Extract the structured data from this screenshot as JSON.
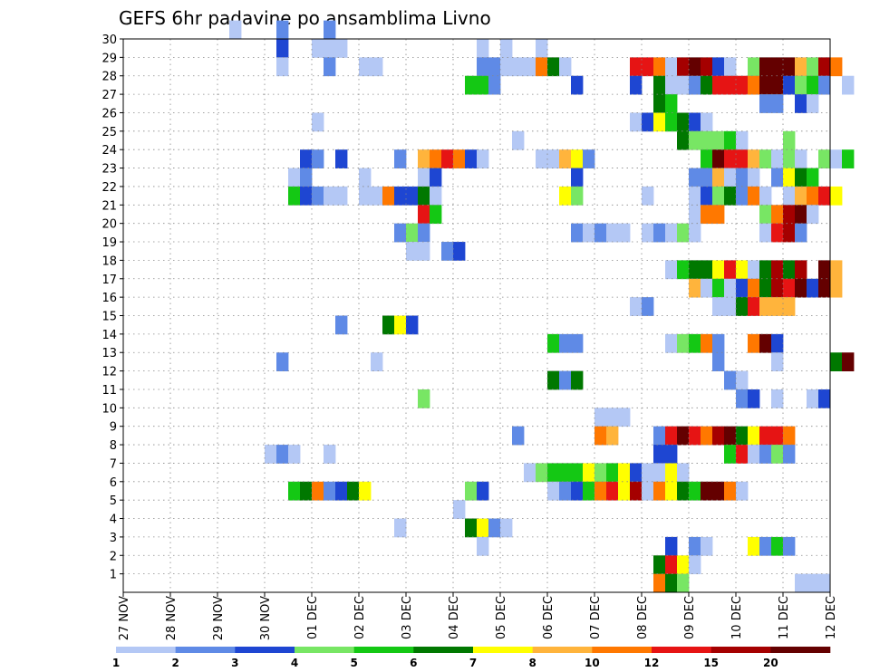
{
  "chart_data": {
    "type": "heatmap",
    "title": "GEFS 6hr padavine po ansamblima Livno",
    "x_labels": [
      "27 NOV",
      "28 NOV",
      "29 NOV",
      "30 NOV",
      "01 DEC",
      "02 DEC",
      "03 DEC",
      "04 DEC",
      "05 DEC",
      "06 DEC",
      "07 DEC",
      "08 DEC",
      "09 DEC",
      "10 DEC",
      "11 DEC",
      "12 DEC"
    ],
    "y_labels": [
      "1",
      "2",
      "3",
      "4",
      "5",
      "6",
      "7",
      "8",
      "9",
      "10",
      "11",
      "12",
      "13",
      "14",
      "15",
      "16",
      "17",
      "18",
      "19",
      "20",
      "21",
      "22",
      "23",
      "24",
      "25",
      "26",
      "27",
      "28",
      "29",
      "30"
    ],
    "xlim": [
      "27 NOV",
      "12 DEC"
    ],
    "ylim": [
      0,
      30
    ],
    "grid": true,
    "steps_per_day": 4,
    "colorbar": {
      "labels": [
        "1",
        "2",
        "3",
        "4",
        "5",
        "6",
        "7",
        "8",
        "10",
        "12",
        "15",
        "20"
      ],
      "colors": [
        "#b4c8f5",
        "#5f8ae6",
        "#1e46d2",
        "#78e664",
        "#14c814",
        "#007800",
        "#ffff00",
        "#ffb43c",
        "#ff7800",
        "#e61414",
        "#a50000",
        "#640000"
      ]
    },
    "cells": [
      [
        30,
        2.25,
        0
      ],
      [
        30,
        3.25,
        1
      ],
      [
        30,
        4.25,
        1
      ],
      [
        29,
        3.25,
        2
      ],
      [
        29,
        4,
        0
      ],
      [
        29,
        4.25,
        0
      ],
      [
        29,
        4.5,
        0
      ],
      [
        29,
        7.5,
        0
      ],
      [
        29,
        8,
        0
      ],
      [
        29,
        8.75,
        0
      ],
      [
        28,
        3.25,
        0
      ],
      [
        28,
        4.25,
        1
      ],
      [
        28,
        5,
        0
      ],
      [
        28,
        5.25,
        0
      ],
      [
        28,
        7.5,
        1
      ],
      [
        28,
        7.75,
        1
      ],
      [
        28,
        8,
        0
      ],
      [
        28,
        8.25,
        0
      ],
      [
        28,
        8.5,
        0
      ],
      [
        28,
        8.75,
        8
      ],
      [
        28,
        9,
        5
      ],
      [
        28,
        9.25,
        0
      ],
      [
        28,
        10.75,
        9
      ],
      [
        28,
        11,
        9
      ],
      [
        28,
        11.25,
        8
      ],
      [
        28,
        11.5,
        0
      ],
      [
        28,
        11.75,
        10
      ],
      [
        28,
        12,
        11
      ],
      [
        28,
        12.25,
        10
      ],
      [
        28,
        12.5,
        2
      ],
      [
        28,
        12.75,
        0
      ],
      [
        28,
        13.25,
        3
      ],
      [
        28,
        13.5,
        11
      ],
      [
        28,
        13.75,
        11
      ],
      [
        28,
        14,
        11
      ],
      [
        28,
        14.25,
        7
      ],
      [
        28,
        14.5,
        3
      ],
      [
        28,
        14.75,
        10
      ],
      [
        28,
        15,
        8
      ],
      [
        27,
        7.25,
        4
      ],
      [
        27,
        7.5,
        4
      ],
      [
        27,
        7.75,
        1
      ],
      [
        27,
        9.5,
        2
      ],
      [
        27,
        10.75,
        2
      ],
      [
        27,
        11.25,
        5
      ],
      [
        27,
        11.5,
        0
      ],
      [
        27,
        11.75,
        0
      ],
      [
        27,
        12,
        1
      ],
      [
        27,
        12.25,
        5
      ],
      [
        27,
        12.5,
        9
      ],
      [
        27,
        12.75,
        9
      ],
      [
        27,
        13,
        9
      ],
      [
        27,
        13.25,
        8
      ],
      [
        27,
        13.5,
        11
      ],
      [
        27,
        13.75,
        11
      ],
      [
        27,
        14,
        2
      ],
      [
        27,
        14.25,
        3
      ],
      [
        27,
        14.5,
        4
      ],
      [
        27,
        14.75,
        1
      ],
      [
        27,
        15.25,
        0
      ],
      [
        26,
        11.25,
        5
      ],
      [
        26,
        11.5,
        4
      ],
      [
        26,
        13.5,
        1
      ],
      [
        26,
        13.75,
        1
      ],
      [
        26,
        14.25,
        2
      ],
      [
        26,
        14.5,
        0
      ],
      [
        25,
        4,
        0
      ],
      [
        25,
        10.75,
        0
      ],
      [
        25,
        11,
        2
      ],
      [
        25,
        11.25,
        6
      ],
      [
        25,
        11.5,
        4
      ],
      [
        25,
        11.75,
        5
      ],
      [
        25,
        12,
        2
      ],
      [
        25,
        12.25,
        0
      ],
      [
        24,
        8.25,
        0
      ],
      [
        24,
        11.75,
        5
      ],
      [
        24,
        12,
        3
      ],
      [
        24,
        12.25,
        3
      ],
      [
        24,
        12.5,
        3
      ],
      [
        24,
        12.75,
        4
      ],
      [
        24,
        13,
        0
      ],
      [
        24,
        14,
        3
      ],
      [
        23,
        3.75,
        2
      ],
      [
        23,
        4,
        1
      ],
      [
        23,
        4.5,
        2
      ],
      [
        23,
        5.75,
        1
      ],
      [
        23,
        6.25,
        7
      ],
      [
        23,
        6.5,
        8
      ],
      [
        23,
        6.75,
        9
      ],
      [
        23,
        7,
        8
      ],
      [
        23,
        7.25,
        2
      ],
      [
        23,
        7.5,
        0
      ],
      [
        23,
        8.75,
        0
      ],
      [
        23,
        9,
        0
      ],
      [
        23,
        9.25,
        7
      ],
      [
        23,
        9.5,
        6
      ],
      [
        23,
        9.75,
        1
      ],
      [
        23,
        12.25,
        4
      ],
      [
        23,
        12.5,
        11
      ],
      [
        23,
        12.75,
        9
      ],
      [
        23,
        13,
        9
      ],
      [
        23,
        13.25,
        7
      ],
      [
        23,
        13.5,
        3
      ],
      [
        23,
        13.75,
        0
      ],
      [
        23,
        14,
        3
      ],
      [
        23,
        14.25,
        0
      ],
      [
        23,
        14.75,
        3
      ],
      [
        23,
        15,
        0
      ],
      [
        23,
        15.25,
        4
      ],
      [
        22,
        3.5,
        0
      ],
      [
        22,
        3.75,
        1
      ],
      [
        22,
        5,
        0
      ],
      [
        22,
        6.25,
        0
      ],
      [
        22,
        6.5,
        2
      ],
      [
        22,
        9.5,
        2
      ],
      [
        22,
        12,
        1
      ],
      [
        22,
        12.25,
        1
      ],
      [
        22,
        12.5,
        7
      ],
      [
        22,
        12.75,
        0
      ],
      [
        22,
        13,
        1
      ],
      [
        22,
        13.25,
        0
      ],
      [
        22,
        13.75,
        1
      ],
      [
        22,
        14,
        6
      ],
      [
        22,
        14.25,
        5
      ],
      [
        22,
        14.5,
        4
      ],
      [
        21,
        3.5,
        4
      ],
      [
        21,
        3.75,
        2
      ],
      [
        21,
        4,
        1
      ],
      [
        21,
        4.25,
        0
      ],
      [
        21,
        4.5,
        0
      ],
      [
        21,
        5,
        0
      ],
      [
        21,
        5.25,
        0
      ],
      [
        21,
        5.5,
        8
      ],
      [
        21,
        5.75,
        2
      ],
      [
        21,
        6,
        2
      ],
      [
        21,
        6.25,
        5
      ],
      [
        21,
        6.5,
        0
      ],
      [
        21,
        9.25,
        6
      ],
      [
        21,
        9.5,
        3
      ],
      [
        21,
        11,
        0
      ],
      [
        21,
        12,
        0
      ],
      [
        21,
        12.25,
        2
      ],
      [
        21,
        12.5,
        3
      ],
      [
        21,
        12.75,
        5
      ],
      [
        21,
        13,
        1
      ],
      [
        21,
        13.25,
        8
      ],
      [
        21,
        13.5,
        0
      ],
      [
        21,
        14,
        0
      ],
      [
        21,
        14.25,
        7
      ],
      [
        21,
        14.5,
        8
      ],
      [
        21,
        14.75,
        9
      ],
      [
        21,
        15,
        6
      ],
      [
        20,
        6.25,
        9
      ],
      [
        20,
        6.5,
        4
      ],
      [
        20,
        12,
        0
      ],
      [
        20,
        12.25,
        8
      ],
      [
        20,
        12.5,
        8
      ],
      [
        20,
        13.5,
        3
      ],
      [
        20,
        13.75,
        8
      ],
      [
        20,
        14,
        10
      ],
      [
        20,
        14.25,
        11
      ],
      [
        20,
        14.5,
        0
      ],
      [
        19,
        5.75,
        1
      ],
      [
        19,
        6,
        3
      ],
      [
        19,
        6.25,
        1
      ],
      [
        19,
        9.5,
        1
      ],
      [
        19,
        9.75,
        0
      ],
      [
        19,
        10,
        1
      ],
      [
        19,
        10.25,
        0
      ],
      [
        19,
        10.5,
        0
      ],
      [
        19,
        11,
        0
      ],
      [
        19,
        11.25,
        1
      ],
      [
        19,
        11.5,
        0
      ],
      [
        19,
        11.75,
        3
      ],
      [
        19,
        12,
        0
      ],
      [
        19,
        13.5,
        0
      ],
      [
        19,
        13.75,
        9
      ],
      [
        19,
        14,
        10
      ],
      [
        19,
        14.25,
        1
      ],
      [
        18,
        6,
        0
      ],
      [
        18,
        6.25,
        0
      ],
      [
        18,
        6.75,
        1
      ],
      [
        18,
        7,
        2
      ],
      [
        17,
        11.5,
        0
      ],
      [
        17,
        11.75,
        4
      ],
      [
        17,
        12,
        5
      ],
      [
        17,
        12.25,
        5
      ],
      [
        17,
        12.5,
        6
      ],
      [
        17,
        12.75,
        9
      ],
      [
        17,
        13,
        6
      ],
      [
        17,
        13.25,
        0
      ],
      [
        17,
        13.5,
        5
      ],
      [
        17,
        13.75,
        10
      ],
      [
        17,
        14,
        5
      ],
      [
        17,
        14.25,
        10
      ],
      [
        17,
        14.75,
        11
      ],
      [
        17,
        15,
        7
      ],
      [
        16,
        12,
        7
      ],
      [
        16,
        12.25,
        0
      ],
      [
        16,
        12.5,
        4
      ],
      [
        16,
        12.75,
        0
      ],
      [
        16,
        13,
        2
      ],
      [
        16,
        13.25,
        8
      ],
      [
        16,
        13.5,
        5
      ],
      [
        16,
        13.75,
        10
      ],
      [
        16,
        14,
        9
      ],
      [
        16,
        14.25,
        11
      ],
      [
        16,
        14.5,
        2
      ],
      [
        16,
        14.75,
        11
      ],
      [
        16,
        15,
        7
      ],
      [
        15,
        10.75,
        0
      ],
      [
        15,
        11,
        1
      ],
      [
        15,
        12.5,
        0
      ],
      [
        15,
        12.75,
        0
      ],
      [
        15,
        13,
        5
      ],
      [
        15,
        13.25,
        9
      ],
      [
        15,
        13.5,
        7
      ],
      [
        15,
        13.75,
        7
      ],
      [
        15,
        14,
        7
      ],
      [
        14,
        4.5,
        1
      ],
      [
        14,
        5.5,
        5
      ],
      [
        14,
        5.75,
        6
      ],
      [
        14,
        6,
        2
      ],
      [
        13,
        9,
        4
      ],
      [
        13,
        9.25,
        1
      ],
      [
        13,
        9.5,
        1
      ],
      [
        13,
        11.5,
        0
      ],
      [
        13,
        11.75,
        3
      ],
      [
        13,
        12,
        4
      ],
      [
        13,
        12.25,
        8
      ],
      [
        13,
        12.5,
        1
      ],
      [
        13,
        13.25,
        8
      ],
      [
        13,
        13.5,
        11
      ],
      [
        13,
        13.75,
        2
      ],
      [
        12,
        3.25,
        1
      ],
      [
        12,
        5.25,
        0
      ],
      [
        12,
        12.5,
        1
      ],
      [
        12,
        13.75,
        0
      ],
      [
        12,
        15,
        5
      ],
      [
        12,
        15.25,
        11
      ],
      [
        11,
        9,
        5
      ],
      [
        11,
        9.25,
        1
      ],
      [
        11,
        9.5,
        5
      ],
      [
        11,
        12.75,
        1
      ],
      [
        11,
        13,
        0
      ],
      [
        10,
        6.25,
        3
      ],
      [
        10,
        13,
        1
      ],
      [
        10,
        13.25,
        2
      ],
      [
        10,
        13.75,
        0
      ],
      [
        10,
        14.5,
        0
      ],
      [
        10,
        14.75,
        2
      ],
      [
        9,
        10,
        0
      ],
      [
        9,
        10.25,
        0
      ],
      [
        9,
        10.5,
        0
      ],
      [
        8,
        8.25,
        1
      ],
      [
        8,
        10,
        8
      ],
      [
        8,
        10.25,
        7
      ],
      [
        8,
        11.25,
        1
      ],
      [
        8,
        11.5,
        9
      ],
      [
        8,
        11.75,
        11
      ],
      [
        8,
        12,
        9
      ],
      [
        8,
        12.25,
        8
      ],
      [
        8,
        12.5,
        10
      ],
      [
        8,
        12.75,
        11
      ],
      [
        8,
        13,
        5
      ],
      [
        8,
        13.25,
        6
      ],
      [
        8,
        13.5,
        9
      ],
      [
        8,
        13.75,
        9
      ],
      [
        8,
        14,
        8
      ],
      [
        7,
        3,
        0
      ],
      [
        7,
        3.25,
        1
      ],
      [
        7,
        3.5,
        0
      ],
      [
        7,
        4.25,
        0
      ],
      [
        7,
        11.25,
        2
      ],
      [
        7,
        11.5,
        2
      ],
      [
        7,
        12.75,
        4
      ],
      [
        7,
        13,
        9
      ],
      [
        7,
        13.25,
        0
      ],
      [
        7,
        13.5,
        1
      ],
      [
        7,
        13.75,
        3
      ],
      [
        7,
        14,
        1
      ],
      [
        6,
        8.5,
        0
      ],
      [
        6,
        8.75,
        3
      ],
      [
        6,
        9,
        4
      ],
      [
        6,
        9.25,
        4
      ],
      [
        6,
        9.5,
        4
      ],
      [
        6,
        9.75,
        6
      ],
      [
        6,
        10,
        3
      ],
      [
        6,
        10.25,
        4
      ],
      [
        6,
        10.5,
        6
      ],
      [
        6,
        10.75,
        2
      ],
      [
        6,
        11,
        0
      ],
      [
        6,
        11.25,
        0
      ],
      [
        6,
        11.5,
        6
      ],
      [
        6,
        11.75,
        0
      ],
      [
        5,
        3.5,
        4
      ],
      [
        5,
        3.75,
        5
      ],
      [
        5,
        4,
        8
      ],
      [
        5,
        4.25,
        1
      ],
      [
        5,
        4.5,
        2
      ],
      [
        5,
        4.75,
        5
      ],
      [
        5,
        5,
        6
      ],
      [
        5,
        7.25,
        3
      ],
      [
        5,
        7.5,
        2
      ],
      [
        5,
        9,
        0
      ],
      [
        5,
        9.25,
        1
      ],
      [
        5,
        9.5,
        2
      ],
      [
        5,
        9.75,
        4
      ],
      [
        5,
        10,
        8
      ],
      [
        5,
        10.25,
        9
      ],
      [
        5,
        10.5,
        6
      ],
      [
        5,
        10.75,
        10
      ],
      [
        5,
        11,
        0
      ],
      [
        5,
        11.25,
        8
      ],
      [
        5,
        11.5,
        6
      ],
      [
        5,
        11.75,
        5
      ],
      [
        5,
        12,
        4
      ],
      [
        5,
        12.25,
        11
      ],
      [
        5,
        12.5,
        11
      ],
      [
        5,
        12.75,
        8
      ],
      [
        5,
        13,
        0
      ],
      [
        4,
        7,
        0
      ],
      [
        3,
        5.75,
        0
      ],
      [
        3,
        7.25,
        5
      ],
      [
        3,
        7.5,
        6
      ],
      [
        3,
        7.75,
        1
      ],
      [
        3,
        8,
        0
      ],
      [
        2,
        7.5,
        0
      ],
      [
        2,
        11.5,
        2
      ],
      [
        2,
        12,
        1
      ],
      [
        2,
        12.25,
        0
      ],
      [
        2,
        13.25,
        6
      ],
      [
        2,
        13.5,
        1
      ],
      [
        2,
        13.75,
        4
      ],
      [
        2,
        14,
        1
      ],
      [
        1,
        11.25,
        5
      ],
      [
        1,
        11.5,
        9
      ],
      [
        1,
        11.75,
        6
      ],
      [
        1,
        12,
        0
      ],
      [
        0,
        11.25,
        8
      ],
      [
        0,
        11.5,
        5
      ],
      [
        0,
        11.75,
        3
      ],
      [
        0,
        14.25,
        0
      ],
      [
        0,
        14.5,
        0
      ],
      [
        0,
        14.75,
        0
      ]
    ]
  }
}
